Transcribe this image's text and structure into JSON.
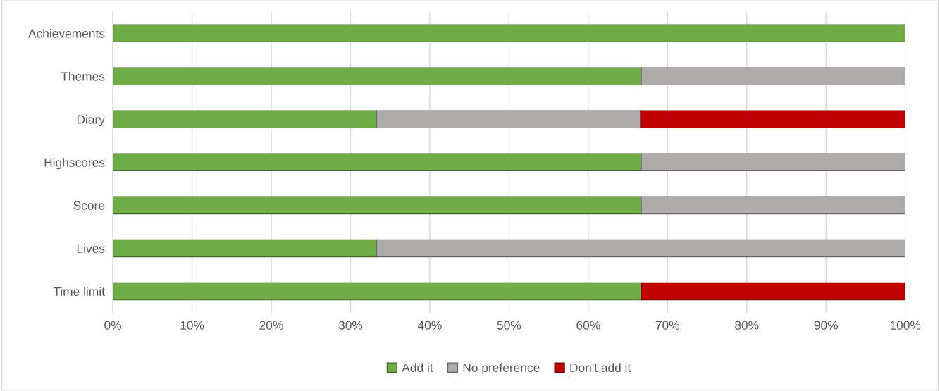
{
  "chart_data": {
    "type": "bar",
    "orientation": "horizontal",
    "stacked": true,
    "categories": [
      "Achievements",
      "Themes",
      "Diary",
      "Highscores",
      "Score",
      "Lives",
      "Time limit"
    ],
    "series": [
      {
        "name": "Add it",
        "color": "#70ad47",
        "values": [
          100,
          66.7,
          33.3,
          66.7,
          66.7,
          33.3,
          66.7
        ]
      },
      {
        "name": "No preference",
        "color": "#afabab",
        "values": [
          0,
          33.3,
          33.3,
          33.3,
          33.3,
          66.7,
          0
        ]
      },
      {
        "name": "Don't add it",
        "color": "#c00000",
        "values": [
          0,
          0,
          33.4,
          0,
          0,
          0,
          33.3
        ]
      }
    ],
    "xlim": [
      0,
      100
    ],
    "xticks": [
      {
        "value": 0,
        "label": "0%"
      },
      {
        "value": 10,
        "label": "10%"
      },
      {
        "value": 20,
        "label": "20%"
      },
      {
        "value": 30,
        "label": "30%"
      },
      {
        "value": 40,
        "label": "40%"
      },
      {
        "value": 50,
        "label": "50%"
      },
      {
        "value": 60,
        "label": "60%"
      },
      {
        "value": 70,
        "label": "70%"
      },
      {
        "value": 80,
        "label": "80%"
      },
      {
        "value": 90,
        "label": "90%"
      },
      {
        "value": 100,
        "label": "100%"
      }
    ],
    "grid": "x",
    "legend": "bottom"
  }
}
